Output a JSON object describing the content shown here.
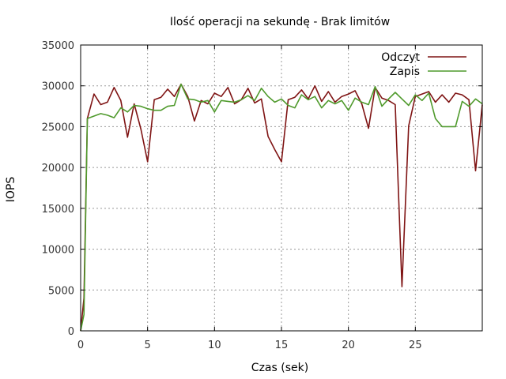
{
  "chart_data": {
    "type": "line",
    "title": "Ilość operacji na sekundę - Brak limitów",
    "xlabel": "Czas (sek)",
    "ylabel": "IOPS",
    "xlim": [
      0,
      30
    ],
    "ylim": [
      0,
      35000
    ],
    "xticks": [
      0,
      5,
      10,
      15,
      20,
      25
    ],
    "yticks": [
      0,
      5000,
      10000,
      15000,
      20000,
      25000,
      30000,
      35000
    ],
    "grid": true,
    "legend_position": "top-right",
    "series": [
      {
        "name": "Odczyt",
        "color": "#7f1414",
        "points": [
          [
            0,
            0
          ],
          [
            0.25,
            4000
          ],
          [
            0.5,
            26000
          ],
          [
            1.0,
            29000
          ],
          [
            1.5,
            27700
          ],
          [
            2.0,
            28000
          ],
          [
            2.5,
            29800
          ],
          [
            3.0,
            28200
          ],
          [
            3.5,
            23700
          ],
          [
            4.0,
            27800
          ],
          [
            4.5,
            24700
          ],
          [
            5.0,
            20700
          ],
          [
            5.5,
            28300
          ],
          [
            6.0,
            28600
          ],
          [
            6.5,
            29600
          ],
          [
            7.0,
            28700
          ],
          [
            7.5,
            30200
          ],
          [
            8.0,
            28700
          ],
          [
            8.5,
            25700
          ],
          [
            9.0,
            28200
          ],
          [
            9.5,
            27800
          ],
          [
            10.0,
            29100
          ],
          [
            10.5,
            28700
          ],
          [
            11.0,
            29800
          ],
          [
            11.5,
            27800
          ],
          [
            12.0,
            28300
          ],
          [
            12.5,
            29700
          ],
          [
            13.0,
            27900
          ],
          [
            13.5,
            28400
          ],
          [
            14.0,
            23800
          ],
          [
            14.5,
            22200
          ],
          [
            15.0,
            20700
          ],
          [
            15.5,
            28300
          ],
          [
            16.0,
            28600
          ],
          [
            16.5,
            29500
          ],
          [
            17.0,
            28400
          ],
          [
            17.5,
            30000
          ],
          [
            18.0,
            28100
          ],
          [
            18.5,
            29300
          ],
          [
            19.0,
            28000
          ],
          [
            19.5,
            28700
          ],
          [
            20.0,
            29000
          ],
          [
            20.5,
            29400
          ],
          [
            21.0,
            27800
          ],
          [
            21.5,
            24800
          ],
          [
            22.0,
            29800
          ],
          [
            22.5,
            28500
          ],
          [
            23.0,
            28200
          ],
          [
            23.5,
            27700
          ],
          [
            24.0,
            5400
          ],
          [
            24.5,
            25100
          ],
          [
            25.0,
            28700
          ],
          [
            25.5,
            29000
          ],
          [
            26.0,
            29300
          ],
          [
            26.5,
            28000
          ],
          [
            27.0,
            28900
          ],
          [
            27.5,
            28000
          ],
          [
            28.0,
            29100
          ],
          [
            28.5,
            28900
          ],
          [
            29.0,
            28300
          ],
          [
            29.5,
            19600
          ],
          [
            30.0,
            27700
          ]
        ]
      },
      {
        "name": "Zapis",
        "color": "#4f9a2c",
        "points": [
          [
            0,
            0
          ],
          [
            0.25,
            2000
          ],
          [
            0.5,
            26000
          ],
          [
            1.0,
            26300
          ],
          [
            1.5,
            26600
          ],
          [
            2.0,
            26400
          ],
          [
            2.5,
            26100
          ],
          [
            3.0,
            27300
          ],
          [
            3.5,
            26800
          ],
          [
            4.0,
            27600
          ],
          [
            4.5,
            27500
          ],
          [
            5.0,
            27200
          ],
          [
            5.5,
            27000
          ],
          [
            6.0,
            27000
          ],
          [
            6.5,
            27500
          ],
          [
            7.0,
            27600
          ],
          [
            7.5,
            30200
          ],
          [
            8.0,
            28400
          ],
          [
            8.5,
            28300
          ],
          [
            9.0,
            28000
          ],
          [
            9.5,
            28200
          ],
          [
            10.0,
            26800
          ],
          [
            10.5,
            28200
          ],
          [
            11.0,
            28100
          ],
          [
            11.5,
            28000
          ],
          [
            12.0,
            28300
          ],
          [
            12.5,
            28800
          ],
          [
            13.0,
            28200
          ],
          [
            13.5,
            29700
          ],
          [
            14.0,
            28700
          ],
          [
            14.5,
            28000
          ],
          [
            15.0,
            28400
          ],
          [
            15.5,
            27600
          ],
          [
            16.0,
            27300
          ],
          [
            16.5,
            28900
          ],
          [
            17.0,
            28300
          ],
          [
            17.5,
            28700
          ],
          [
            18.0,
            27300
          ],
          [
            18.5,
            28200
          ],
          [
            19.0,
            27800
          ],
          [
            19.5,
            28200
          ],
          [
            20.0,
            27000
          ],
          [
            20.5,
            28500
          ],
          [
            21.0,
            28000
          ],
          [
            21.5,
            27700
          ],
          [
            22.0,
            29900
          ],
          [
            22.5,
            27500
          ],
          [
            23.0,
            28400
          ],
          [
            23.5,
            29200
          ],
          [
            24.0,
            28400
          ],
          [
            24.5,
            27600
          ],
          [
            25.0,
            28900
          ],
          [
            25.5,
            28200
          ],
          [
            26.0,
            29100
          ],
          [
            26.5,
            26000
          ],
          [
            27.0,
            25000
          ],
          [
            27.5,
            25000
          ],
          [
            28.0,
            25000
          ],
          [
            28.5,
            28100
          ],
          [
            29.0,
            27500
          ],
          [
            29.5,
            28400
          ],
          [
            30.0,
            27800
          ]
        ]
      }
    ]
  }
}
